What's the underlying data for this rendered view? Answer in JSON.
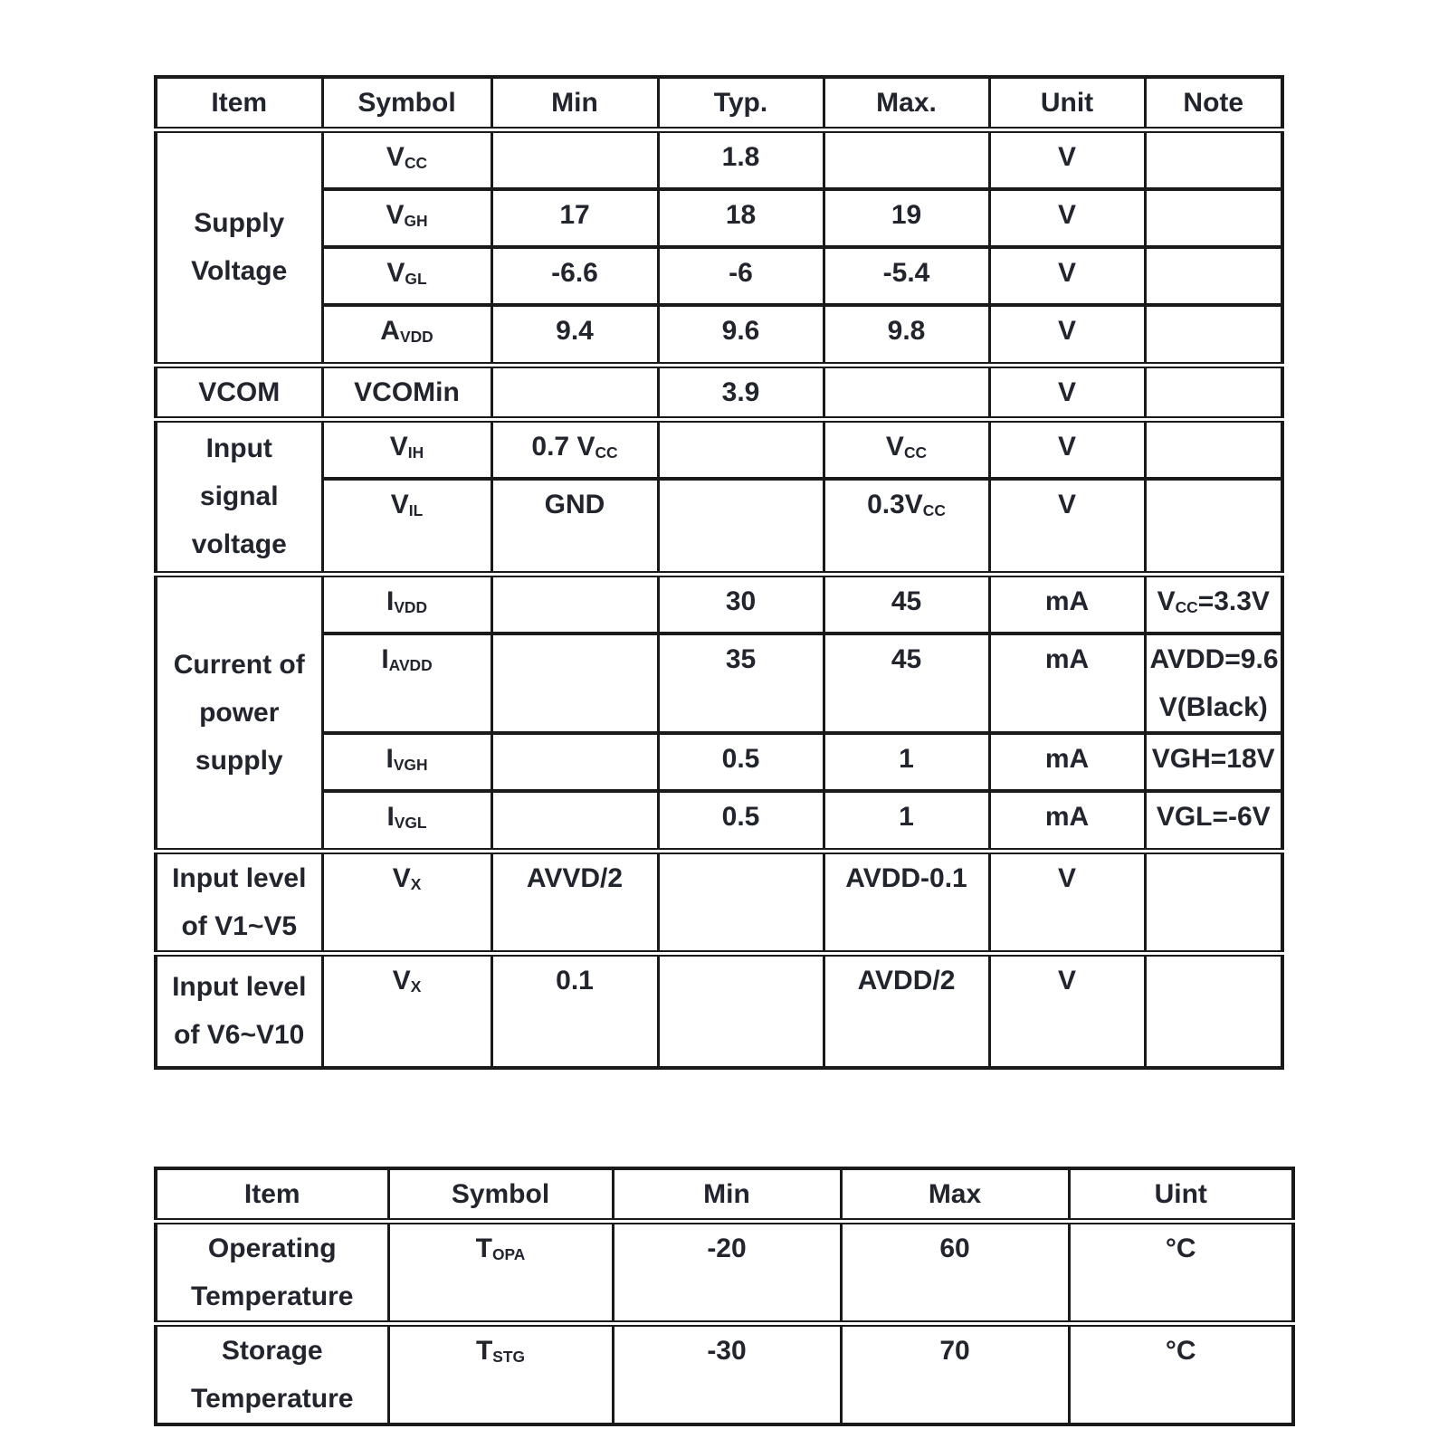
{
  "colors": {
    "background": "#ffffff",
    "border": "#1a1a1a",
    "text": "#22242e"
  },
  "spec_table": {
    "headers": [
      "Item",
      "Symbol",
      "Min",
      "Typ.",
      "Max.",
      "Unit",
      "Note"
    ],
    "groups": [
      {
        "item_lines": [
          "Supply",
          "Voltage"
        ],
        "rows": [
          {
            "symbol": [
              {
                "t": "V"
              },
              {
                "t": "CC",
                "sub": true
              }
            ],
            "min": [],
            "typ": [
              {
                "t": "1.8"
              }
            ],
            "max": [],
            "unit": [
              {
                "t": "V"
              }
            ],
            "note": []
          },
          {
            "symbol": [
              {
                "t": "V"
              },
              {
                "t": "GH",
                "sub": true
              }
            ],
            "min": [
              {
                "t": "17"
              }
            ],
            "typ": [
              {
                "t": "18"
              }
            ],
            "max": [
              {
                "t": "19"
              }
            ],
            "unit": [
              {
                "t": "V"
              }
            ],
            "note": []
          },
          {
            "symbol": [
              {
                "t": "V"
              },
              {
                "t": "GL",
                "sub": true
              }
            ],
            "min": [
              {
                "t": "-6.6"
              }
            ],
            "typ": [
              {
                "t": "-6"
              }
            ],
            "max": [
              {
                "t": "-5.4"
              }
            ],
            "unit": [
              {
                "t": "V"
              }
            ],
            "note": []
          },
          {
            "symbol": [
              {
                "t": "A"
              },
              {
                "t": "VDD",
                "sub": true
              }
            ],
            "min": [
              {
                "t": "9.4"
              }
            ],
            "typ": [
              {
                "t": "9.6"
              }
            ],
            "max": [
              {
                "t": "9.8"
              }
            ],
            "unit": [
              {
                "t": "V"
              }
            ],
            "note": []
          }
        ]
      },
      {
        "item_lines": [
          "VCOM"
        ],
        "rows": [
          {
            "symbol": [
              {
                "t": "VCOMin"
              }
            ],
            "min": [],
            "typ": [
              {
                "t": "3.9"
              }
            ],
            "max": [],
            "unit": [
              {
                "t": "V"
              }
            ],
            "note": []
          }
        ]
      },
      {
        "item_lines": [
          "Input",
          "signal",
          "voltage"
        ],
        "rows": [
          {
            "symbol": [
              {
                "t": "V"
              },
              {
                "t": "IH",
                "sub": true
              }
            ],
            "min": [
              {
                "t": "0.7 V"
              },
              {
                "t": "CC",
                "sub": true
              }
            ],
            "typ": [],
            "max": [
              {
                "t": "V"
              },
              {
                "t": "CC",
                "sub": true
              }
            ],
            "unit": [
              {
                "t": "V"
              }
            ],
            "note": []
          },
          {
            "symbol": [
              {
                "t": "V"
              },
              {
                "t": "IL",
                "sub": true
              }
            ],
            "min": [
              {
                "t": "GND"
              }
            ],
            "typ": [],
            "max": [
              {
                "t": "0.3V"
              },
              {
                "t": "CC",
                "sub": true
              }
            ],
            "unit": [
              {
                "t": "V"
              }
            ],
            "note": []
          }
        ]
      },
      {
        "item_lines": [
          "Current of",
          "power",
          "supply"
        ],
        "rows": [
          {
            "symbol": [
              {
                "t": "I"
              },
              {
                "t": "VDD",
                "sub": true
              }
            ],
            "min": [],
            "typ": [
              {
                "t": "30"
              }
            ],
            "max": [
              {
                "t": "45"
              }
            ],
            "unit": [
              {
                "t": "mA"
              }
            ],
            "note": [
              {
                "t": "V"
              },
              {
                "t": "CC",
                "sub": true
              },
              {
                "t": "=3.3V"
              }
            ]
          },
          {
            "symbol": [
              {
                "t": "I"
              },
              {
                "t": "AVDD",
                "sub": true
              }
            ],
            "min": [],
            "typ": [
              {
                "t": "35"
              }
            ],
            "max": [
              {
                "t": "45"
              }
            ],
            "unit": [
              {
                "t": "mA"
              }
            ],
            "note": [
              {
                "t": "AVDD=9.6"
              },
              {
                "br": true
              },
              {
                "t": "V(Black)"
              }
            ]
          },
          {
            "symbol": [
              {
                "t": "I"
              },
              {
                "t": "VGH",
                "sub": true
              }
            ],
            "min": [],
            "typ": [
              {
                "t": "0.5"
              }
            ],
            "max": [
              {
                "t": "1"
              }
            ],
            "unit": [
              {
                "t": "mA"
              }
            ],
            "note": [
              {
                "t": "VGH=18V"
              }
            ]
          },
          {
            "symbol": [
              {
                "t": "I"
              },
              {
                "t": "VGL",
                "sub": true
              }
            ],
            "min": [],
            "typ": [
              {
                "t": "0.5"
              }
            ],
            "max": [
              {
                "t": "1"
              }
            ],
            "unit": [
              {
                "t": "mA"
              }
            ],
            "note": [
              {
                "t": "VGL=-6V"
              }
            ]
          }
        ]
      },
      {
        "item_lines": [
          "Input level",
          "of V1~V5"
        ],
        "rows": [
          {
            "symbol": [
              {
                "t": "V"
              },
              {
                "t": "X",
                "sub": true
              }
            ],
            "min": [
              {
                "t": "AVVD/2"
              }
            ],
            "typ": [],
            "max": [
              {
                "t": "AVDD-0.1"
              }
            ],
            "unit": [
              {
                "t": "V"
              }
            ],
            "note": []
          }
        ]
      },
      {
        "item_lines": [
          "Input level",
          "of V6~V10"
        ],
        "rows": [
          {
            "symbol": [
              {
                "t": "V"
              },
              {
                "t": "X",
                "sub": true
              }
            ],
            "min": [
              {
                "t": "0.1"
              }
            ],
            "typ": [],
            "max": [
              {
                "t": "AVDD/2"
              }
            ],
            "unit": [
              {
                "t": "V"
              }
            ],
            "note": []
          }
        ]
      }
    ]
  },
  "temp_table": {
    "headers": [
      "Item",
      "Symbol",
      "Min",
      "Max",
      "Uint"
    ],
    "rows": [
      {
        "item_lines": [
          "Operating",
          "Temperature"
        ],
        "symbol": [
          {
            "t": "T"
          },
          {
            "t": "OPA",
            "sub": true
          }
        ],
        "min": [
          {
            "t": "-20"
          }
        ],
        "max": [
          {
            "t": "60"
          }
        ],
        "unit": [
          {
            "t": "°C"
          }
        ]
      },
      {
        "item_lines": [
          "Storage",
          "Temperature"
        ],
        "symbol": [
          {
            "t": "T"
          },
          {
            "t": "STG",
            "sub": true
          }
        ],
        "min": [
          {
            "t": "-30"
          }
        ],
        "max": [
          {
            "t": "70"
          }
        ],
        "unit": [
          {
            "t": "°C"
          }
        ]
      }
    ]
  }
}
